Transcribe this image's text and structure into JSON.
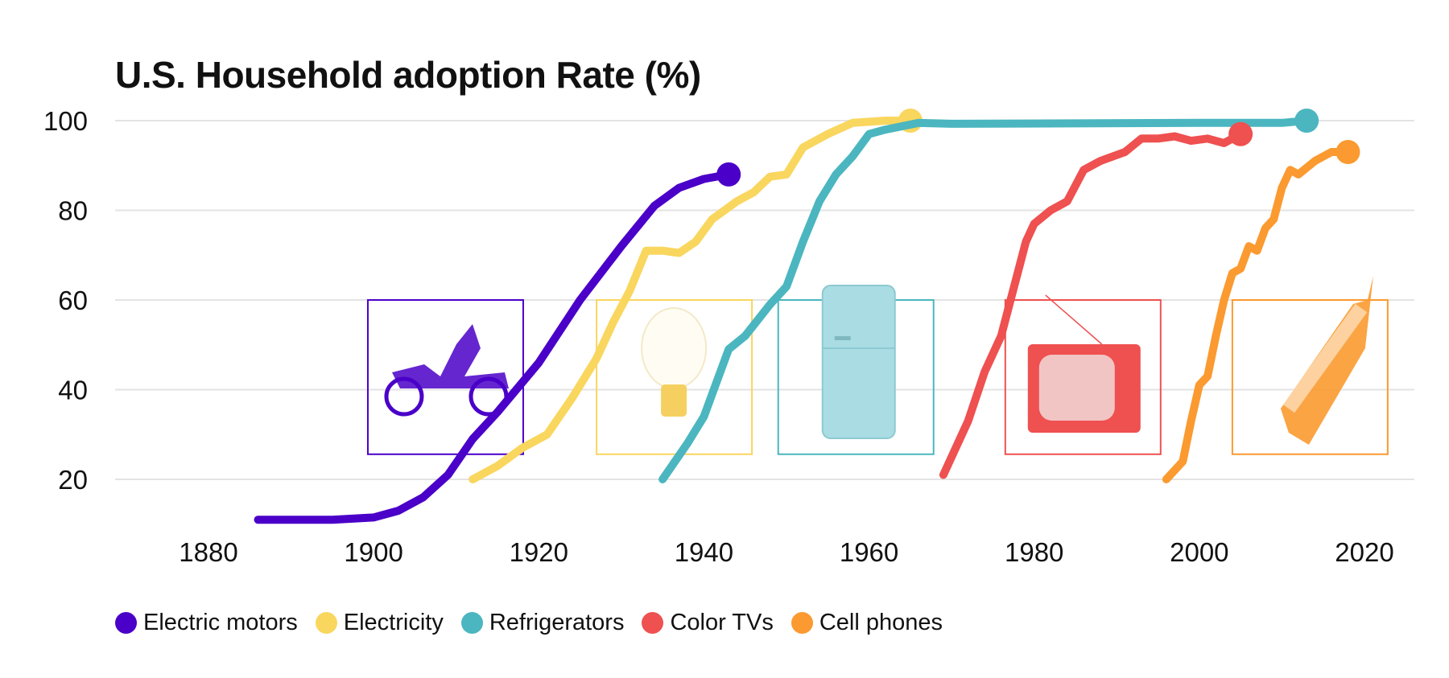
{
  "chart_data": {
    "type": "line",
    "title": "U.S. Household adoption Rate (%)",
    "xlabel": "",
    "ylabel": "",
    "xlim": [
      1870,
      2025
    ],
    "ylim": [
      10,
      100
    ],
    "x_ticks": [
      "1880",
      "1900",
      "1920",
      "1940",
      "1960",
      "1980",
      "2000",
      "2020"
    ],
    "y_ticks": [
      "20",
      "40",
      "60",
      "80",
      "100"
    ],
    "grid": "horizontal",
    "legend_placement": "bottom-left",
    "series": [
      {
        "name": "Electric motors",
        "color": "#4a00c8",
        "icon": "car-icon",
        "x": [
          1886,
          1895,
          1900,
          1903,
          1906,
          1909,
          1912,
          1915,
          1920,
          1925,
          1930,
          1934,
          1937,
          1940,
          1943
        ],
        "y": [
          11,
          11,
          11.5,
          13,
          16,
          21,
          29,
          35,
          46,
          60,
          72,
          81,
          85,
          87,
          88
        ]
      },
      {
        "name": "Electricity",
        "color": "#f9d65e",
        "icon": "light-bulb-icon",
        "x": [
          1912,
          1915,
          1918,
          1921,
          1924,
          1927,
          1929,
          1931,
          1933,
          1935,
          1937,
          1939,
          1941,
          1944,
          1946,
          1948,
          1950,
          1952,
          1955,
          1958,
          1962,
          1965
        ],
        "y": [
          20,
          23,
          27,
          30,
          38,
          47,
          55,
          62,
          71,
          71,
          70.5,
          73,
          78,
          82,
          84,
          87.5,
          88,
          94,
          97,
          99.5,
          100,
          100
        ]
      },
      {
        "name": "Refrigerators",
        "color": "#4bb6bf",
        "icon": "refrigerator-icon",
        "x": [
          1935,
          1938,
          1940,
          1942,
          1943,
          1945,
          1948,
          1950,
          1952,
          1954,
          1956,
          1958,
          1960,
          1962,
          1966,
          1970,
          2000,
          2010,
          2013
        ],
        "y": [
          20,
          28,
          34,
          44,
          49,
          52,
          59,
          63,
          73,
          82,
          88,
          92,
          97,
          98,
          99.5,
          99.3,
          99.5,
          99.5,
          100
        ]
      },
      {
        "name": "Color TVs",
        "color": "#ef5050",
        "icon": "television-icon",
        "x": [
          1969,
          1972,
          1974,
          1976,
          1977,
          1979,
          1980,
          1982,
          1984,
          1986,
          1988,
          1991,
          1993,
          1995,
          1997,
          1999,
          2001,
          2003,
          2005
        ],
        "y": [
          21,
          33,
          44,
          52,
          59,
          73,
          77,
          80,
          82,
          89,
          91,
          93,
          96,
          96,
          96.5,
          95.5,
          96,
          95,
          97
        ]
      },
      {
        "name": "Cell phones",
        "color": "#fb9a30",
        "icon": "cell-phone-icon",
        "x": [
          1996,
          1998,
          1999,
          2000,
          2001,
          2002,
          2003,
          2004,
          2005,
          2006,
          2007,
          2008,
          2009,
          2010,
          2011,
          2012,
          2014,
          2016,
          2018
        ],
        "y": [
          20,
          24,
          33,
          41,
          43,
          52,
          60,
          66,
          67,
          72,
          71,
          76,
          78,
          85,
          89,
          88,
          91,
          93,
          93
        ]
      }
    ]
  }
}
